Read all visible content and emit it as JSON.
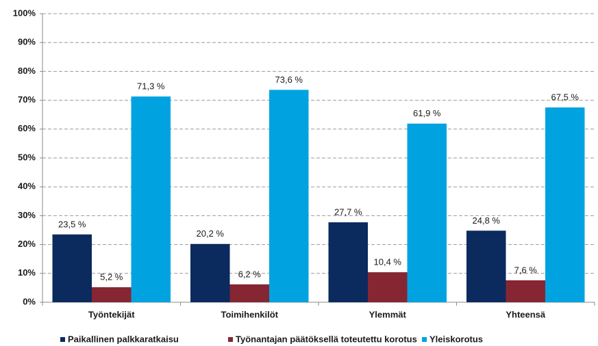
{
  "chart_data": {
    "type": "bar",
    "categories": [
      "Työntekijät",
      "Toimihenkilöt",
      "Ylemmät",
      "Yhteensä"
    ],
    "series": [
      {
        "name": "Paikallinen palkkaratkaisu",
        "color": "#0b2a5e",
        "values": [
          23.5,
          20.2,
          27.7,
          24.8
        ],
        "value_labels": [
          "23,5 %",
          "20,2 %",
          "27,7 %",
          "24,8 %"
        ]
      },
      {
        "name": "Työnantajan päätöksellä toteutettu korotus",
        "color": "#862633",
        "values": [
          5.2,
          6.2,
          10.4,
          7.6
        ],
        "value_labels": [
          "5,2 %",
          "6,2 %",
          "10,4 %",
          "7,6 %"
        ]
      },
      {
        "name": "Yleiskorotus",
        "color": "#00a3e0",
        "values": [
          71.3,
          73.6,
          61.9,
          67.5
        ],
        "value_labels": [
          "71,3 %",
          "73,6 %",
          "61,9 %",
          "67,5 %"
        ]
      }
    ],
    "ylim": [
      0,
      100
    ],
    "yticks": [
      {
        "value": 0,
        "label": "0%"
      },
      {
        "value": 10,
        "label": "10%"
      },
      {
        "value": 20,
        "label": "20%"
      },
      {
        "value": 30,
        "label": "30%"
      },
      {
        "value": 40,
        "label": "40%"
      },
      {
        "value": 50,
        "label": "50%"
      },
      {
        "value": 60,
        "label": "60%"
      },
      {
        "value": 70,
        "label": "70%"
      },
      {
        "value": 80,
        "label": "80%"
      },
      {
        "value": 90,
        "label": "90%"
      },
      {
        "value": 100,
        "label": "100%"
      }
    ],
    "grid": true,
    "legend": "bottom"
  }
}
